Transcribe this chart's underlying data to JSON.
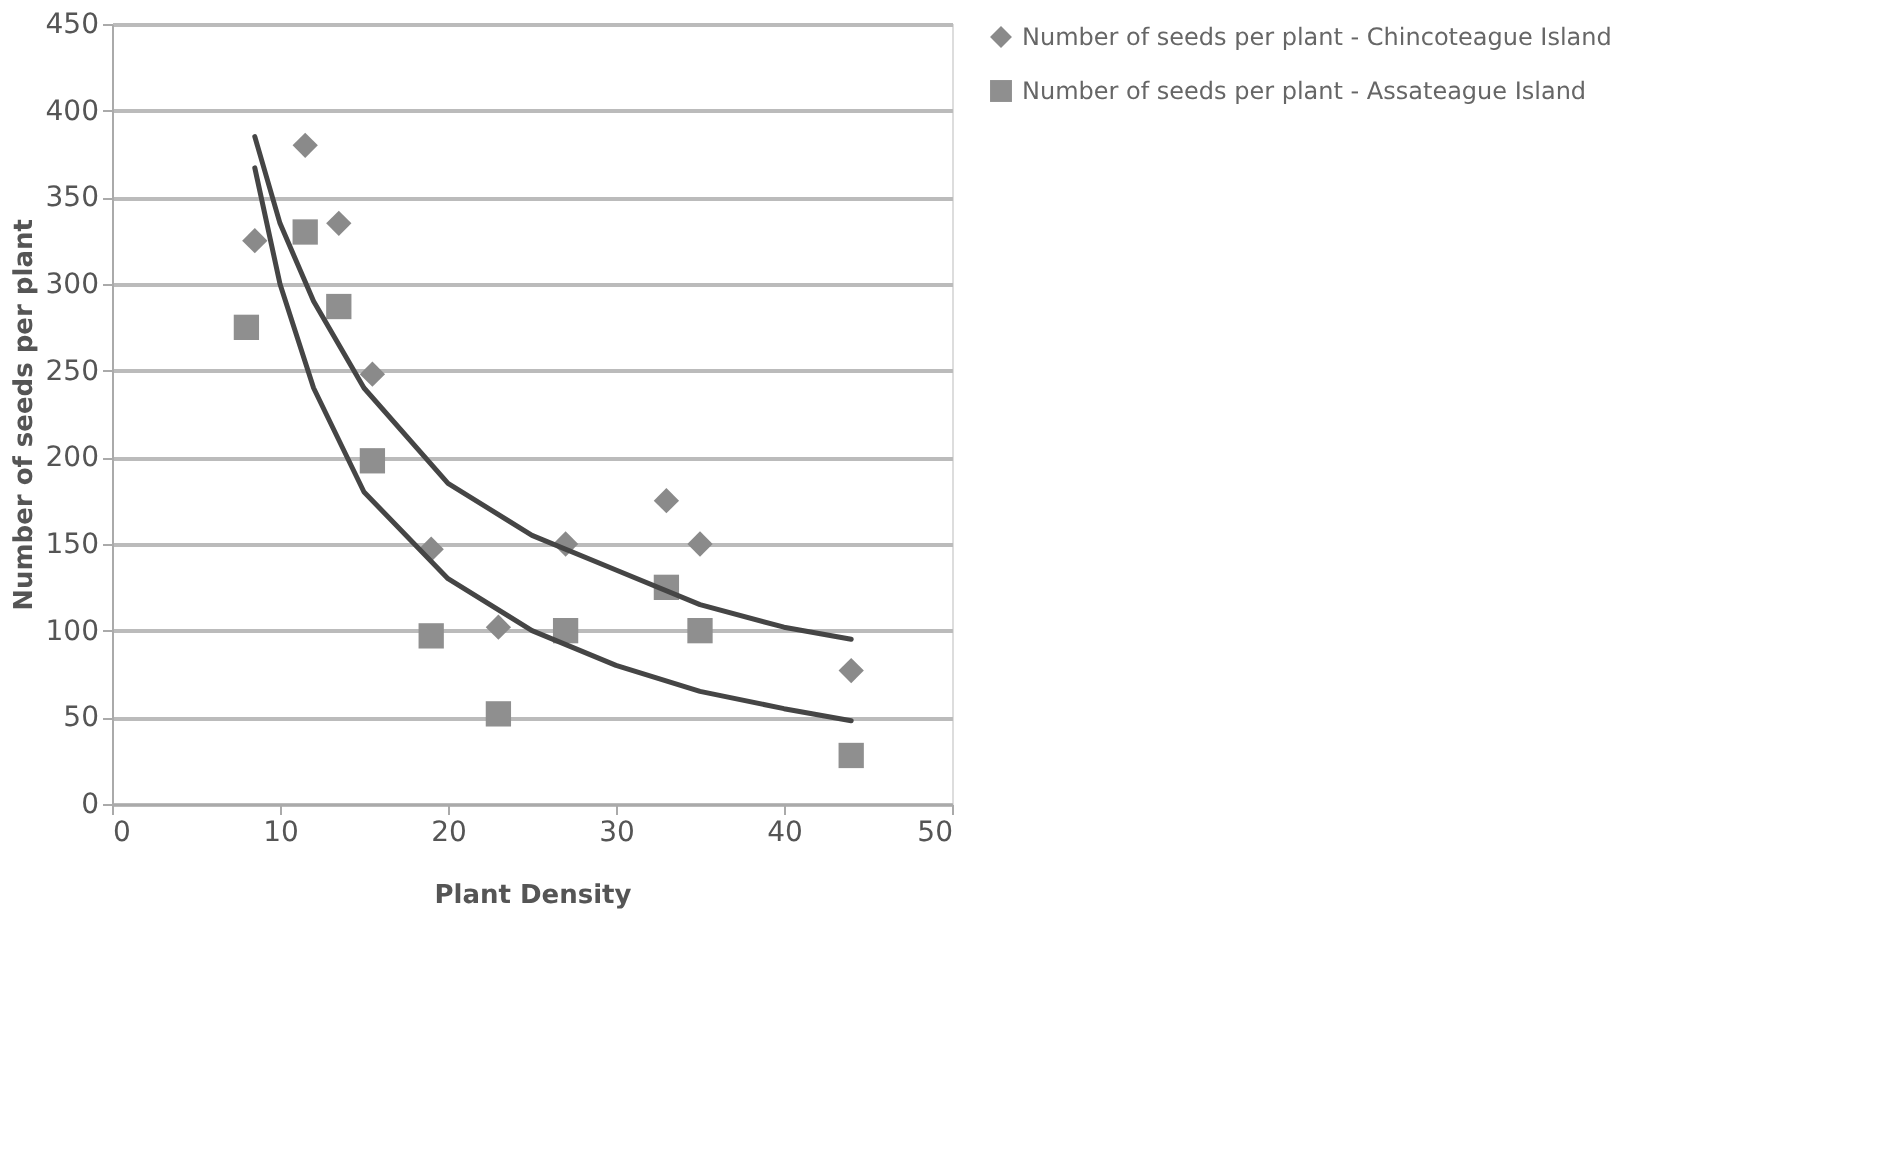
{
  "chart_data": {
    "type": "scatter",
    "xlabel": "Plant Density",
    "ylabel": "Number of seeds per plant",
    "xlim": [
      0,
      50
    ],
    "xticks": [
      0,
      10,
      20,
      30,
      40,
      50
    ],
    "ylim": [
      0,
      450
    ],
    "yticks": [
      0,
      50,
      100,
      150,
      200,
      250,
      300,
      350,
      400,
      450
    ],
    "grid": "y",
    "legend": "right",
    "series": [
      {
        "name": "Number of seeds per plant - Chincoteague Island",
        "color": "#8a8a8a",
        "marker": "diamond",
        "x": [
          8.5,
          11.5,
          13.5,
          15.5,
          19,
          23,
          27,
          33,
          35,
          44
        ],
        "values": [
          325,
          380,
          335,
          248,
          147,
          102,
          150,
          175,
          150,
          77
        ]
      },
      {
        "name": "Number of seeds per plant - Assateague Island",
        "color": "#8f8f8f",
        "marker": "square",
        "x": [
          8,
          11.5,
          13.5,
          15.5,
          19,
          23,
          27,
          33,
          35,
          44
        ],
        "values": [
          275,
          330,
          287,
          198,
          97,
          52,
          100,
          125,
          100,
          28
        ]
      },
      {
        "type": "line",
        "color": "#454545",
        "x": [
          8.5,
          10,
          12,
          15,
          20,
          25,
          30,
          35,
          40,
          44
        ],
        "values": [
          385,
          335,
          290,
          240,
          185,
          155,
          135,
          115,
          102,
          95
        ]
      },
      {
        "type": "line",
        "color": "#454545",
        "x": [
          8.5,
          10,
          12,
          15,
          20,
          25,
          30,
          35,
          40,
          44
        ],
        "values": [
          367,
          300,
          240,
          180,
          130,
          100,
          80,
          65,
          55,
          48
        ]
      }
    ]
  }
}
